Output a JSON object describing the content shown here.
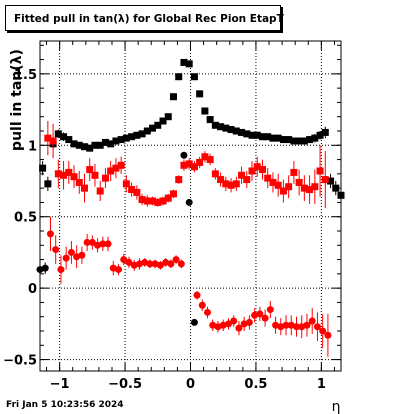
{
  "footer": {
    "timestamp": "Fri Jan  5 10:23:56 2024"
  },
  "chart_data": {
    "type": "scatter",
    "title": "Fitted pull in tan(λ) for Global Rec Pion EtapT",
    "xlabel": "η",
    "ylabel": "pull in tan(λ)",
    "xlim": [
      -1.15,
      1.15
    ],
    "ylim": [
      -0.58,
      1.73
    ],
    "xticks": [
      {
        "value": -1,
        "label": "−1"
      },
      {
        "value": -0.5,
        "label": "−0.5"
      },
      {
        "value": 0,
        "label": "0"
      },
      {
        "value": 0.5,
        "label": "0.5"
      },
      {
        "value": 1,
        "label": "1"
      }
    ],
    "yticks": [
      {
        "value": -0.5,
        "label": "−0.5"
      },
      {
        "value": 0,
        "label": "0"
      },
      {
        "value": 0.5,
        "label": "0.5"
      },
      {
        "value": 1,
        "label": "1"
      },
      {
        "value": 1.5,
        "label": "1.5"
      }
    ],
    "grid": true,
    "series": [
      {
        "color": "#000000",
        "marker": "square",
        "x": [
          -1.13,
          -1.09,
          -1.05,
          -1.01,
          -0.97,
          -0.93,
          -0.89,
          -0.85,
          -0.81,
          -0.77,
          -0.73,
          -0.69,
          -0.65,
          -0.61,
          -0.57,
          -0.53,
          -0.49,
          -0.45,
          -0.41,
          -0.37,
          -0.33,
          -0.29,
          -0.25,
          -0.21,
          -0.17,
          -0.13,
          -0.09,
          -0.05,
          -0.01,
          0.03,
          0.07,
          0.11,
          0.15,
          0.19,
          0.23,
          0.27,
          0.31,
          0.35,
          0.39,
          0.43,
          0.47,
          0.51,
          0.55,
          0.59,
          0.63,
          0.67,
          0.71,
          0.75,
          0.79,
          0.83,
          0.87,
          0.91,
          0.95,
          0.99,
          1.03,
          1.07,
          1.11,
          1.15
        ],
        "y": [
          0.84,
          0.73,
          1.01,
          1.08,
          1.06,
          1.04,
          1.01,
          1.0,
          0.99,
          0.98,
          1.0,
          1.0,
          1.02,
          1.01,
          1.03,
          1.04,
          1.05,
          1.06,
          1.07,
          1.08,
          1.1,
          1.12,
          1.14,
          1.17,
          1.2,
          1.34,
          1.48,
          1.58,
          1.57,
          1.48,
          1.36,
          1.24,
          1.18,
          1.14,
          1.13,
          1.12,
          1.11,
          1.1,
          1.09,
          1.08,
          1.07,
          1.07,
          1.06,
          1.06,
          1.05,
          1.05,
          1.04,
          1.04,
          1.03,
          1.03,
          1.03,
          1.04,
          1.05,
          1.07,
          1.09,
          0.75,
          0.7,
          0.65
        ],
        "err": [
          0.05,
          0.05,
          0.04,
          0.03,
          0.03,
          0.02,
          0.02,
          0.02,
          0.02,
          0.02,
          0.02,
          0.02,
          0.02,
          0.02,
          0.02,
          0.02,
          0.02,
          0.02,
          0.02,
          0.02,
          0.02,
          0.02,
          0.02,
          0.02,
          0.02,
          0.02,
          0.02,
          0.02,
          0.02,
          0.02,
          0.02,
          0.02,
          0.02,
          0.02,
          0.02,
          0.02,
          0.02,
          0.02,
          0.02,
          0.02,
          0.02,
          0.02,
          0.02,
          0.02,
          0.02,
          0.02,
          0.02,
          0.02,
          0.02,
          0.02,
          0.02,
          0.02,
          0.03,
          0.03,
          0.04,
          0.05,
          0.05,
          0.06
        ]
      },
      {
        "color": "#ff0000",
        "marker": "square",
        "x": [
          -1.09,
          -1.05,
          -1.01,
          -0.97,
          -0.93,
          -0.89,
          -0.85,
          -0.81,
          -0.77,
          -0.73,
          -0.69,
          -0.65,
          -0.61,
          -0.57,
          -0.53,
          -0.49,
          -0.45,
          -0.41,
          -0.37,
          -0.33,
          -0.29,
          -0.25,
          -0.21,
          -0.17,
          -0.13,
          -0.09,
          -0.05,
          -0.01,
          0.03,
          0.07,
          0.11,
          0.15,
          0.19,
          0.23,
          0.27,
          0.31,
          0.35,
          0.39,
          0.43,
          0.47,
          0.51,
          0.55,
          0.59,
          0.63,
          0.67,
          0.71,
          0.75,
          0.79,
          0.83,
          0.87,
          0.91,
          0.95,
          0.99,
          1.03
        ],
        "y": [
          1.05,
          1.03,
          0.8,
          0.79,
          0.81,
          0.78,
          0.74,
          0.7,
          0.83,
          0.79,
          0.68,
          0.77,
          0.82,
          0.84,
          0.86,
          0.73,
          0.69,
          0.67,
          0.62,
          0.61,
          0.61,
          0.6,
          0.61,
          0.63,
          0.66,
          0.76,
          0.86,
          0.87,
          0.85,
          0.88,
          0.92,
          0.9,
          0.8,
          0.76,
          0.73,
          0.72,
          0.73,
          0.79,
          0.76,
          0.82,
          0.85,
          0.83,
          0.77,
          0.74,
          0.72,
          0.68,
          0.71,
          0.81,
          0.74,
          0.7,
          0.69,
          0.71,
          0.82,
          0.76
        ],
        "err": [
          0.12,
          0.12,
          0.1,
          0.1,
          0.08,
          0.08,
          0.08,
          0.1,
          0.08,
          0.08,
          0.07,
          0.07,
          0.07,
          0.07,
          0.06,
          0.06,
          0.05,
          0.05,
          0.04,
          0.04,
          0.03,
          0.03,
          0.03,
          0.03,
          0.03,
          0.03,
          0.04,
          0.04,
          0.04,
          0.04,
          0.04,
          0.04,
          0.04,
          0.05,
          0.05,
          0.05,
          0.05,
          0.06,
          0.06,
          0.07,
          0.07,
          0.07,
          0.07,
          0.07,
          0.08,
          0.08,
          0.08,
          0.08,
          0.09,
          0.09,
          0.1,
          0.12,
          0.18,
          0.2
        ]
      },
      {
        "color": "#000000",
        "marker": "circle",
        "x": [
          -1.15,
          -1.11,
          -0.05,
          -0.01,
          0.03
        ],
        "y": [
          0.13,
          0.14,
          0.93,
          0.6,
          -0.24
        ],
        "err": [
          0.04,
          0.04,
          0.02,
          0.02,
          0.02
        ]
      },
      {
        "color": "#ff0000",
        "marker": "circle",
        "x": [
          -1.07,
          -1.03,
          -0.99,
          -0.95,
          -0.91,
          -0.87,
          -0.83,
          -0.79,
          -0.75,
          -0.71,
          -0.67,
          -0.63,
          -0.59,
          -0.55,
          -0.51,
          -0.47,
          -0.43,
          -0.39,
          -0.35,
          -0.31,
          -0.27,
          -0.23,
          -0.19,
          -0.15,
          -0.11,
          -0.07,
          0.05,
          0.09,
          0.13,
          0.17,
          0.21,
          0.25,
          0.29,
          0.33,
          0.37,
          0.41,
          0.45,
          0.49,
          0.53,
          0.57,
          0.61,
          0.65,
          0.69,
          0.73,
          0.77,
          0.81,
          0.85,
          0.89,
          0.93,
          0.97,
          1.01,
          1.05
        ],
        "y": [
          0.38,
          0.27,
          0.13,
          0.21,
          0.25,
          0.22,
          0.23,
          0.32,
          0.32,
          0.3,
          0.31,
          0.31,
          0.14,
          0.13,
          0.2,
          0.18,
          0.16,
          0.17,
          0.18,
          0.17,
          0.17,
          0.16,
          0.18,
          0.17,
          0.2,
          0.17,
          -0.05,
          -0.12,
          -0.17,
          -0.26,
          -0.27,
          -0.26,
          -0.25,
          -0.23,
          -0.28,
          -0.25,
          -0.24,
          -0.19,
          -0.18,
          -0.21,
          -0.15,
          -0.26,
          -0.27,
          -0.26,
          -0.26,
          -0.27,
          -0.27,
          -0.26,
          -0.23,
          -0.27,
          -0.3,
          -0.33
        ],
        "err": [
          0.12,
          0.1,
          0.1,
          0.08,
          0.08,
          0.08,
          0.06,
          0.06,
          0.05,
          0.05,
          0.05,
          0.05,
          0.05,
          0.04,
          0.04,
          0.04,
          0.04,
          0.04,
          0.03,
          0.03,
          0.03,
          0.03,
          0.03,
          0.03,
          0.03,
          0.03,
          0.03,
          0.04,
          0.04,
          0.04,
          0.04,
          0.04,
          0.04,
          0.04,
          0.05,
          0.05,
          0.05,
          0.05,
          0.05,
          0.06,
          0.06,
          0.06,
          0.06,
          0.07,
          0.07,
          0.07,
          0.08,
          0.08,
          0.09,
          0.1,
          0.12,
          0.15
        ]
      }
    ]
  }
}
